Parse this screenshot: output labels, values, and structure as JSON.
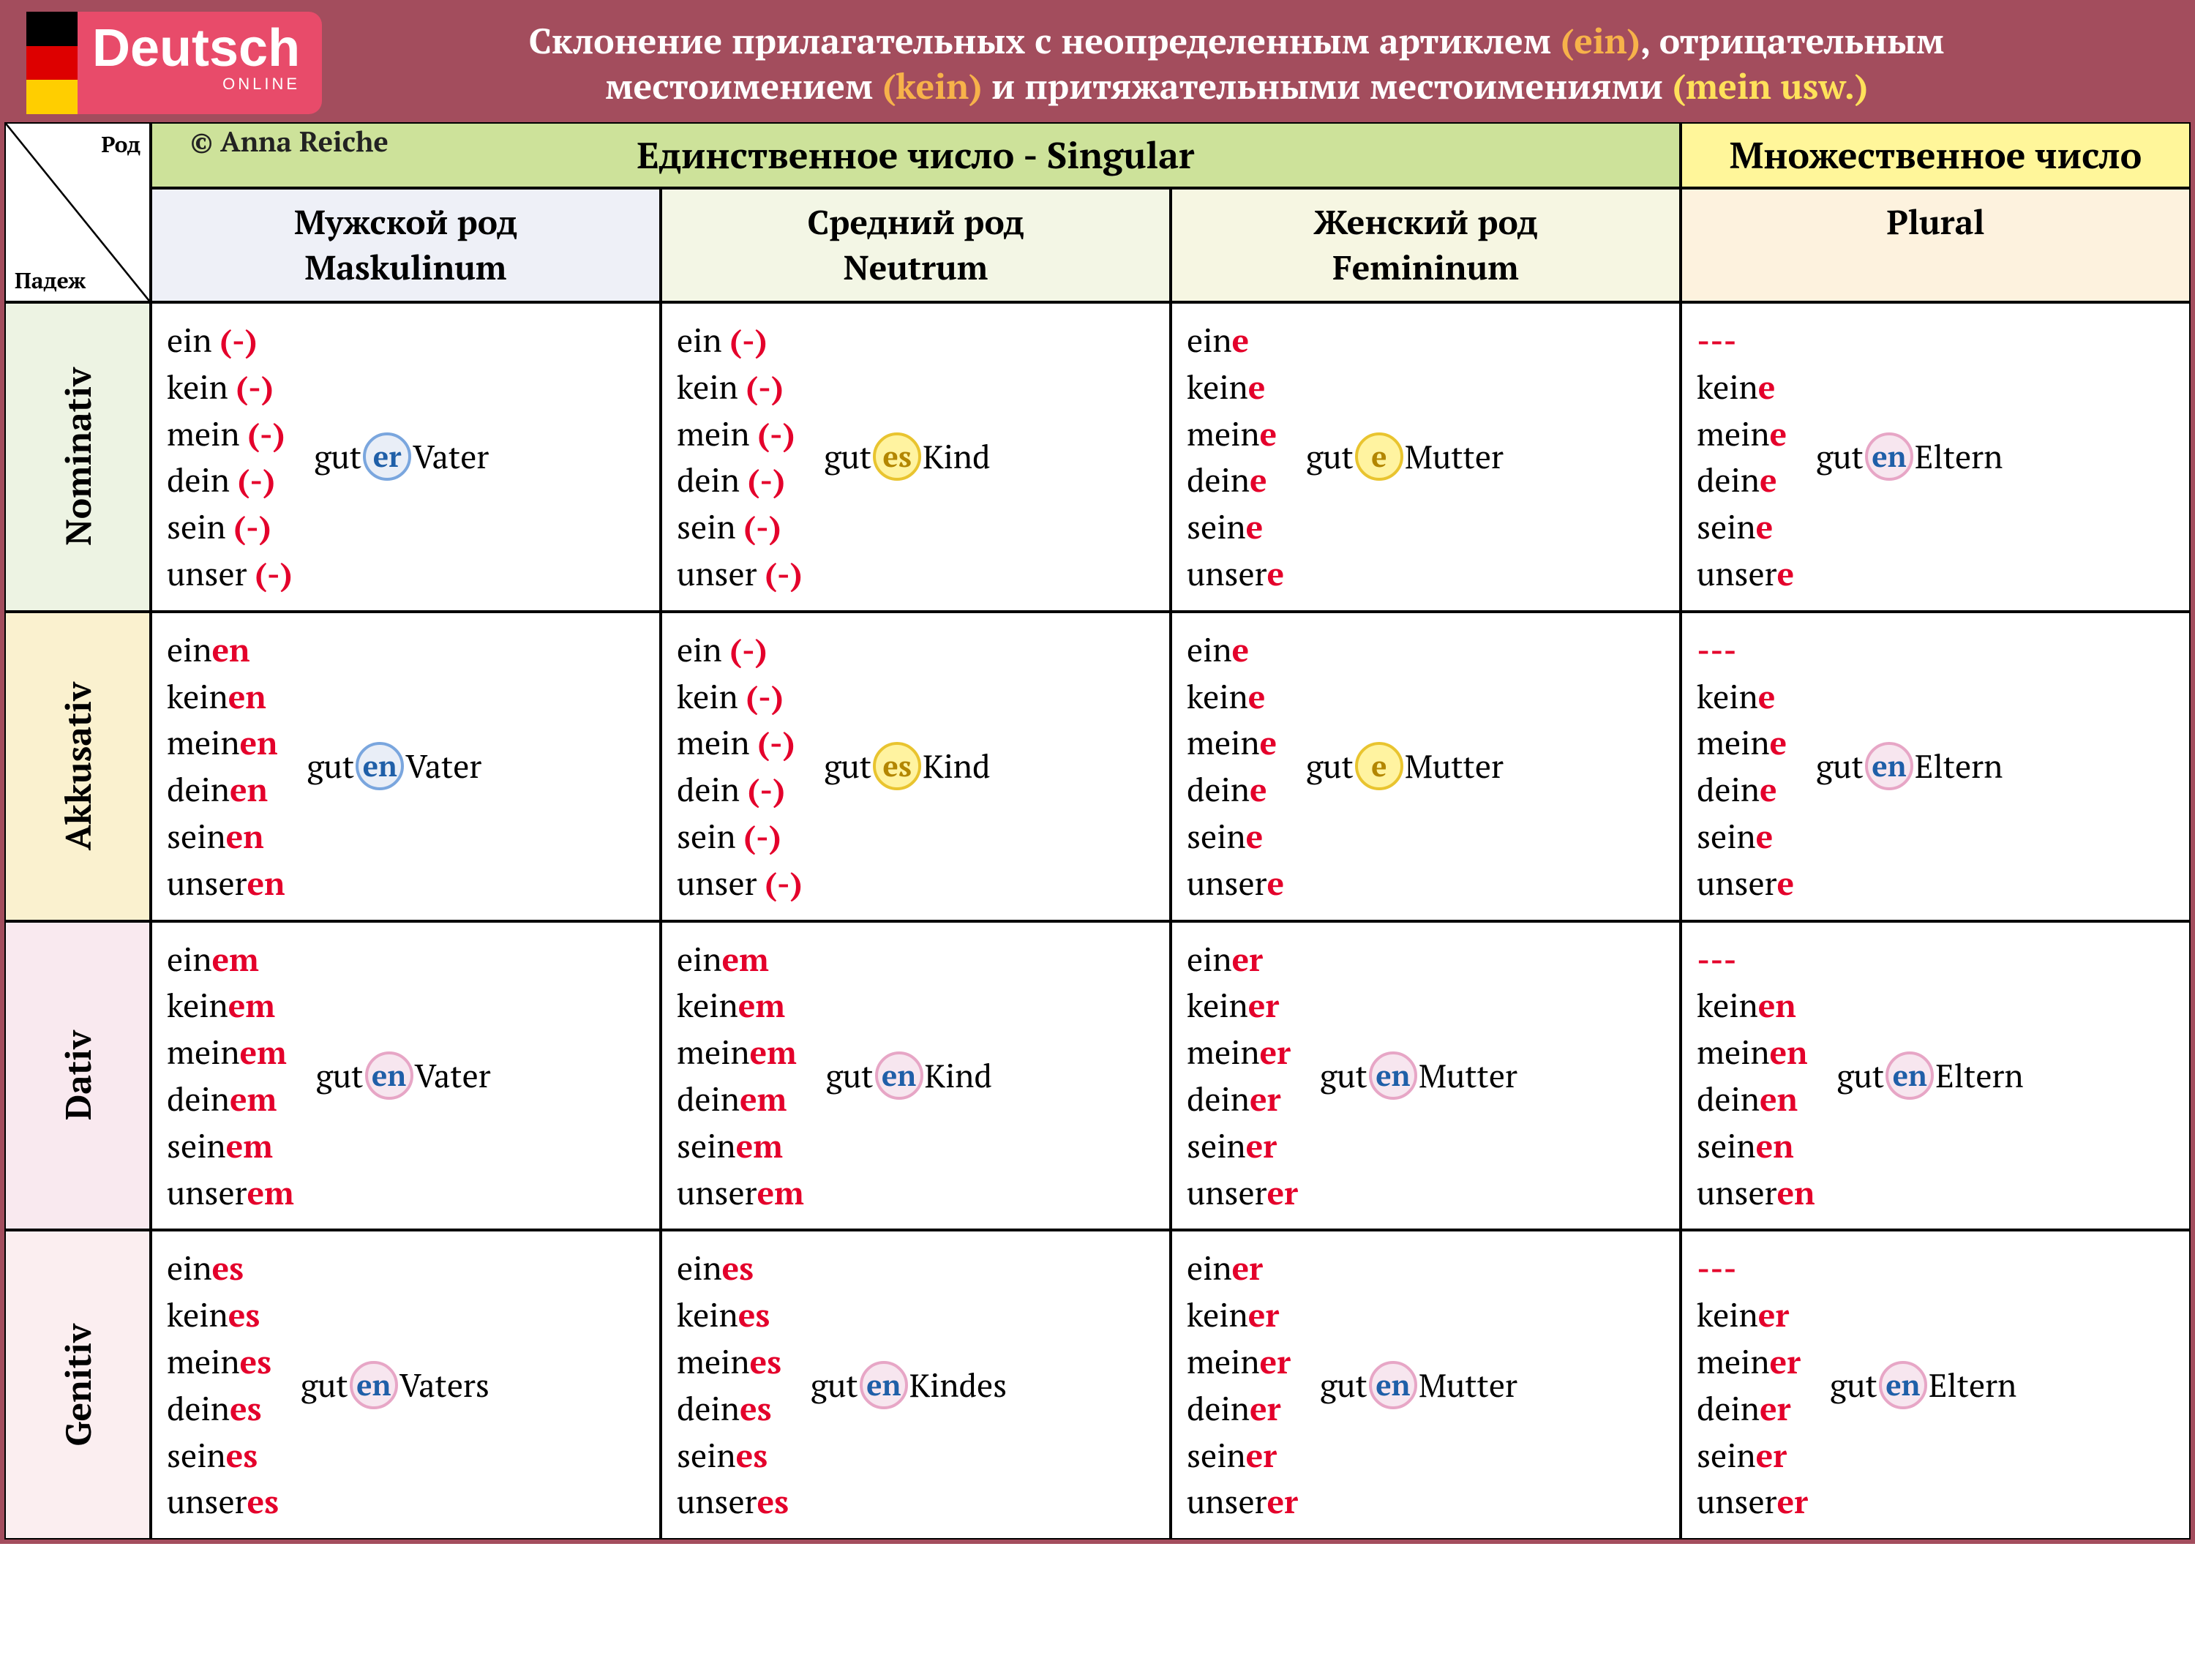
{
  "logo": {
    "brand": "Deutsch",
    "sub": "ONLINE"
  },
  "credit": "© Anna Reiche",
  "title": {
    "line1_a": "Склонение прилагательных с неопределенным артиклем ",
    "line1_b": "(ein)",
    "line1_c": ", отрицательным",
    "line2_a": "местоимением ",
    "line2_b": "(kein)",
    "line2_c": " и притяжательными местоимениями ",
    "line2_d": "(mein usw.)"
  },
  "headers": {
    "singular": "Единственное число   -   Singular",
    "plural_top": "Множественное число",
    "corner_rod": "Род",
    "corner_pad": "Падеж",
    "col_m_ru": "Мужской род",
    "col_m_de": "Maskulinum",
    "col_n_ru": "Средний род",
    "col_n_de": "Neutrum",
    "col_f_ru": "Женский род",
    "col_f_de": "Femininum",
    "col_p": "Plural"
  },
  "cases": {
    "nom": "Nominativ",
    "akk": "Akkusativ",
    "dat": "Dativ",
    "gen": "Genitiv"
  },
  "stems": [
    "ein",
    "kein",
    "mein",
    "dein",
    "sein",
    "unser"
  ],
  "plural_placeholder": "---",
  "endings": {
    "nom": {
      "m": "(-)",
      "n": "(-)",
      "f": "e",
      "p": "e"
    },
    "akk": {
      "m": "en",
      "n": "(-)",
      "f": "e",
      "p": "e"
    },
    "dat": {
      "m": "em",
      "n": "em",
      "f": "er",
      "p": "en"
    },
    "gen": {
      "m": "es",
      "n": "es",
      "f": "er",
      "p": "er"
    }
  },
  "adj": {
    "nom": {
      "m": {
        "pre": "gut",
        "circ": "er",
        "style": "blue",
        "post": "Vater"
      },
      "n": {
        "pre": "gut",
        "circ": "es",
        "style": "yellow",
        "post": "Kind"
      },
      "f": {
        "pre": "gut",
        "circ": "e",
        "style": "yellow",
        "post": "Mutter"
      },
      "p": {
        "pre": "gut",
        "circ": "en",
        "style": "pink",
        "post": "Eltern"
      }
    },
    "akk": {
      "m": {
        "pre": "gut",
        "circ": "en",
        "style": "blue",
        "post": "Vater"
      },
      "n": {
        "pre": "gut",
        "circ": "es",
        "style": "yellow",
        "post": "Kind"
      },
      "f": {
        "pre": "gut",
        "circ": "e",
        "style": "yellow",
        "post": "Mutter"
      },
      "p": {
        "pre": "gut",
        "circ": "en",
        "style": "pink",
        "post": "Eltern"
      }
    },
    "dat": {
      "m": {
        "pre": "gut",
        "circ": "en",
        "style": "pink",
        "post": "Vater"
      },
      "n": {
        "pre": "gut",
        "circ": "en",
        "style": "pink",
        "post": "Kind"
      },
      "f": {
        "pre": "gut",
        "circ": "en",
        "style": "pink",
        "post": "Mutter"
      },
      "p": {
        "pre": "gut",
        "circ": "en",
        "style": "pink",
        "post": "Eltern"
      }
    },
    "gen": {
      "m": {
        "pre": "gut",
        "circ": "en",
        "style": "pink",
        "post": "Vaters"
      },
      "n": {
        "pre": "gut",
        "circ": "en",
        "style": "pink",
        "post": "Kindes"
      },
      "f": {
        "pre": "gut",
        "circ": "en",
        "style": "pink",
        "post": "Mutter"
      },
      "p": {
        "pre": "gut",
        "circ": "en",
        "style": "pink",
        "post": "Eltern"
      }
    }
  },
  "colors": {
    "header_bg": "#a34d5d",
    "logo_bg": "#e84b6a",
    "accent_red": "#e4002b",
    "singular_bg": "#cde29a",
    "plural_bg": "#fff69a"
  }
}
